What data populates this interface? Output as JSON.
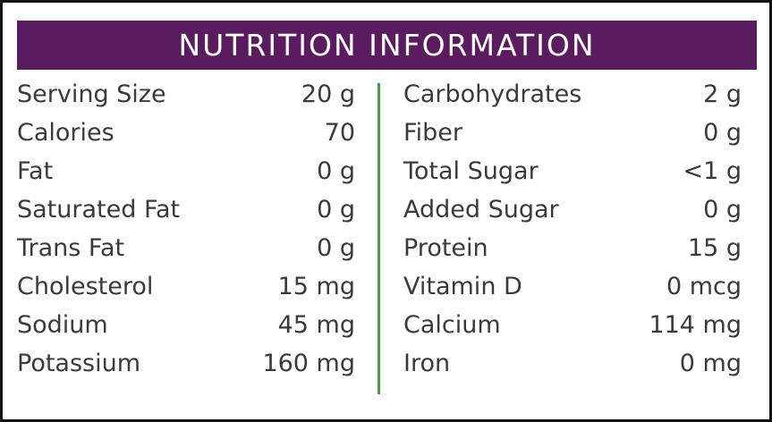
{
  "header": {
    "title": "NUTRITION INFORMATION"
  },
  "table": {
    "left": [
      [
        "Serving Size",
        "20 g"
      ],
      [
        "Calories",
        "70"
      ],
      [
        "Fat",
        "0 g"
      ],
      [
        "Saturated Fat",
        "0 g"
      ],
      [
        "Trans Fat",
        "0 g"
      ],
      [
        "Cholesterol",
        "15 mg"
      ],
      [
        "Sodium",
        "45 mg"
      ],
      [
        "Potassium",
        "160 mg"
      ]
    ],
    "right": [
      [
        "Carbohydrates",
        "2 g"
      ],
      [
        "Fiber",
        "0 g"
      ],
      [
        "Total Sugar",
        "<1 g"
      ],
      [
        "Added Sugar",
        "0 g"
      ],
      [
        "Protein",
        "15 g"
      ],
      [
        "Vitamin D",
        "0 mcg"
      ],
      [
        "Calcium",
        "114 mg"
      ],
      [
        "Iron",
        "0 mg"
      ]
    ]
  }
}
